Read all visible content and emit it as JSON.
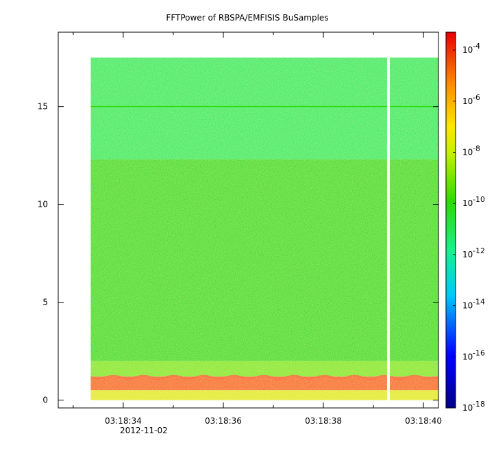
{
  "chart_data": {
    "type": "heatmap",
    "title": "FFTPower of RBSPA/EMFISIS  BuSamples",
    "xlabel": "",
    "ylabel": "",
    "date_label": "2012-11-02",
    "x_time_range": [
      "03:18:32.7",
      "03:18:40.3"
    ],
    "ylim": [
      -0.4,
      18.8
    ],
    "y_ticks": [
      0,
      5,
      10,
      15
    ],
    "x_tick_labels": [
      "03:18:34",
      "03:18:36",
      "03:18:38",
      "03:18:40"
    ],
    "x_major_ticks_sec": [
      34,
      36,
      38,
      40
    ],
    "x_minor_ticks_sec": [
      33,
      35,
      37,
      39
    ],
    "data_extent": {
      "t_start": "03:18:33.35",
      "t_end": "03:18:40.3",
      "y_min": 0,
      "y_max": 17.5
    },
    "gap": {
      "t": "03:18:39.3"
    },
    "colorbar": {
      "scale": "log",
      "range": [
        "1e-18",
        "1e-3.3"
      ],
      "tick_labels": [
        "10",
        "10",
        "10",
        "10",
        "10",
        "10",
        "10",
        "10"
      ],
      "tick_exponents": [
        "-4",
        "-6",
        "-8",
        "-10",
        "-12",
        "-14",
        "-16",
        "-18"
      ],
      "tick_log_values": [
        -4,
        -6,
        -8,
        -10,
        -12,
        -14,
        -16,
        -18
      ]
    },
    "bands": [
      {
        "y_from": 12.3,
        "y_to": 17.5,
        "level": "cyan-green",
        "log_power": -11.3
      },
      {
        "y_from": 2.0,
        "y_to": 12.3,
        "level": "green",
        "log_power": -9.8
      },
      {
        "y_from": 1.2,
        "y_to": 2.0,
        "level": "yellow-green",
        "log_power": -8.8
      },
      {
        "y_from": 0.5,
        "y_to": 1.2,
        "level": "red",
        "log_power": -4.8
      },
      {
        "y_from": 0.0,
        "y_to": 0.5,
        "level": "yellow",
        "log_power": -7.5
      }
    ],
    "features": [
      {
        "type": "line",
        "y": 15.0,
        "log_power": -10.0
      }
    ],
    "colors": {
      "red": "#e60000",
      "orange": "#ff7a00",
      "yellow": "#ffe600",
      "yellow_green": "#b8f000",
      "green": "#2adc00",
      "cyan_green": "#19f08c",
      "cyan": "#00e6ff",
      "blue": "#0050ff",
      "dark_blue": "#00008c"
    }
  }
}
